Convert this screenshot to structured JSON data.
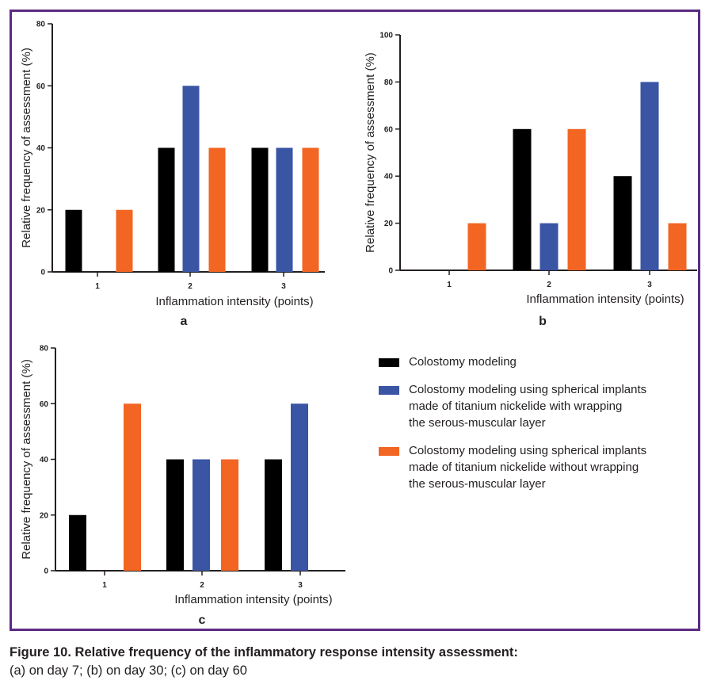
{
  "colors": {
    "series": [
      "#000000",
      "#3a55a4",
      "#f26522"
    ],
    "frame": "#5b2a82"
  },
  "legend": {
    "items": [
      {
        "lines": [
          "Colostomy modeling"
        ]
      },
      {
        "lines": [
          "Colostomy modeling using spherical implants",
          "made of titanium nickelide with wrapping",
          "the serous-muscular layer"
        ]
      },
      {
        "lines": [
          "Colostomy modeling using spherical implants",
          "made of titanium nickelide without wrapping",
          "the serous-muscular layer"
        ]
      }
    ]
  },
  "caption": {
    "title": "Figure 10. Relative frequency of the inflammatory response intensity assessment:",
    "text": "(a) on day 7; (b) on day 30; (c) on day 60"
  },
  "chart_data": [
    {
      "panel": "a",
      "type": "bar",
      "categories": [
        "1",
        "2",
        "3"
      ],
      "series": [
        {
          "values": [
            20,
            40,
            40
          ]
        },
        {
          "values": [
            0,
            60,
            40
          ]
        },
        {
          "values": [
            20,
            40,
            40
          ]
        }
      ],
      "xlabel": "Inflammation intensity (points)",
      "ylabel": "Relative frequency of assessment (%)",
      "ylim": [
        0,
        80
      ],
      "yticks": [
        0,
        20,
        40,
        60,
        80
      ]
    },
    {
      "panel": "b",
      "type": "bar",
      "categories": [
        "1",
        "2",
        "3"
      ],
      "series": [
        {
          "values": [
            0,
            60,
            40
          ]
        },
        {
          "values": [
            0,
            20,
            80
          ]
        },
        {
          "values": [
            20,
            60,
            20
          ]
        }
      ],
      "xlabel": "Inflammation intensity (points)",
      "ylabel": "Relative frequency of assessment (%)",
      "ylim": [
        0,
        100
      ],
      "yticks": [
        0,
        20,
        40,
        60,
        80,
        100
      ]
    },
    {
      "panel": "c",
      "type": "bar",
      "categories": [
        "1",
        "2",
        "3"
      ],
      "series": [
        {
          "values": [
            20,
            40,
            40
          ]
        },
        {
          "values": [
            0,
            40,
            60
          ]
        },
        {
          "values": [
            60,
            40,
            0
          ]
        }
      ],
      "xlabel": "Inflammation intensity (points)",
      "ylabel": "Relative frequency of assessment (%)",
      "ylim": [
        0,
        80
      ],
      "yticks": [
        0,
        20,
        40,
        60,
        80
      ]
    }
  ]
}
